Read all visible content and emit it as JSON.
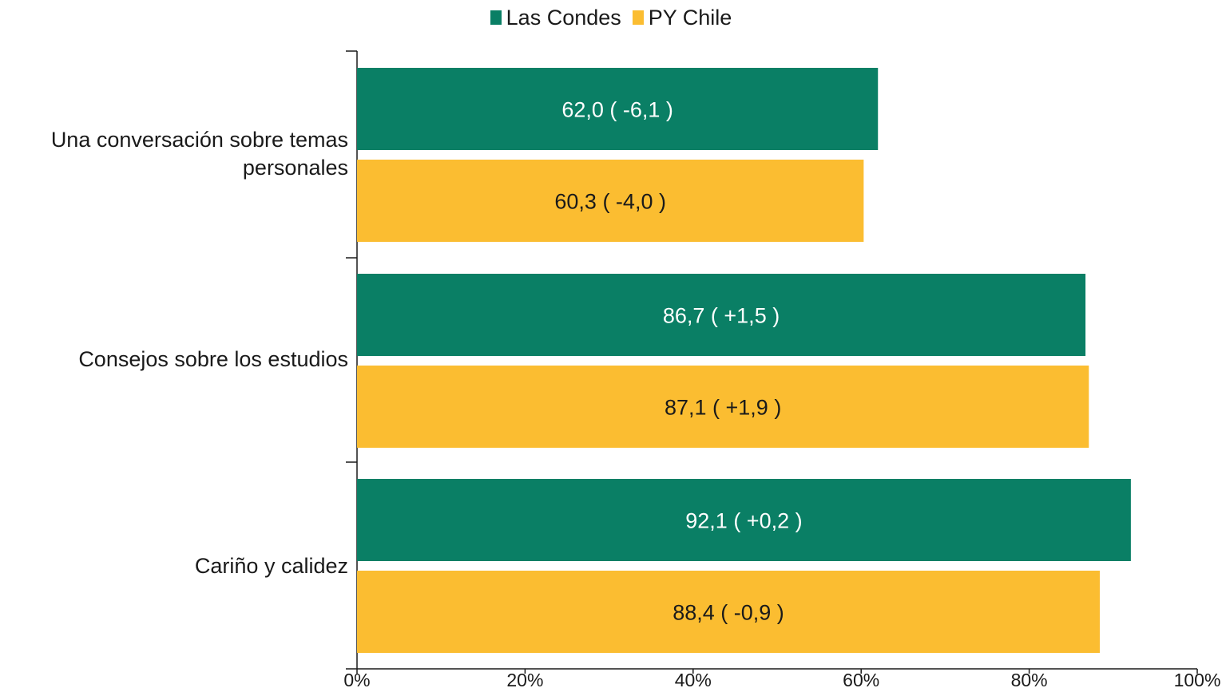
{
  "chart_data": {
    "type": "bar",
    "orientation": "horizontal",
    "title": "",
    "xlabel": "",
    "ylabel": "",
    "xlim": [
      0,
      100
    ],
    "legend_position": "top-center",
    "grid": false,
    "categories": [
      "Una conversación sobre temas personales",
      "Consejos sobre los estudios",
      "Cariño y calidez"
    ],
    "series": [
      {
        "name": "Las Condes",
        "color": "#0a7f65",
        "label_color": "#ffffff",
        "values": [
          62.0,
          86.7,
          92.1
        ],
        "labels": [
          "62,0 ( -6,1 )",
          "86,7 ( +1,5 )",
          "92,1 ( +0,2 )"
        ]
      },
      {
        "name": "PY Chile",
        "color": "#fbbd31",
        "label_color": "#1a1a1a",
        "values": [
          60.3,
          87.1,
          88.4
        ],
        "labels": [
          "60,3 ( -4,0 )",
          "87,1 ( +1,9 )",
          "88,4 ( -0,9 )"
        ]
      }
    ],
    "x_ticks": [
      0,
      20,
      40,
      60,
      80,
      100
    ],
    "x_tick_labels": [
      "0%",
      "20%",
      "40%",
      "60%",
      "80%",
      "100%"
    ]
  }
}
